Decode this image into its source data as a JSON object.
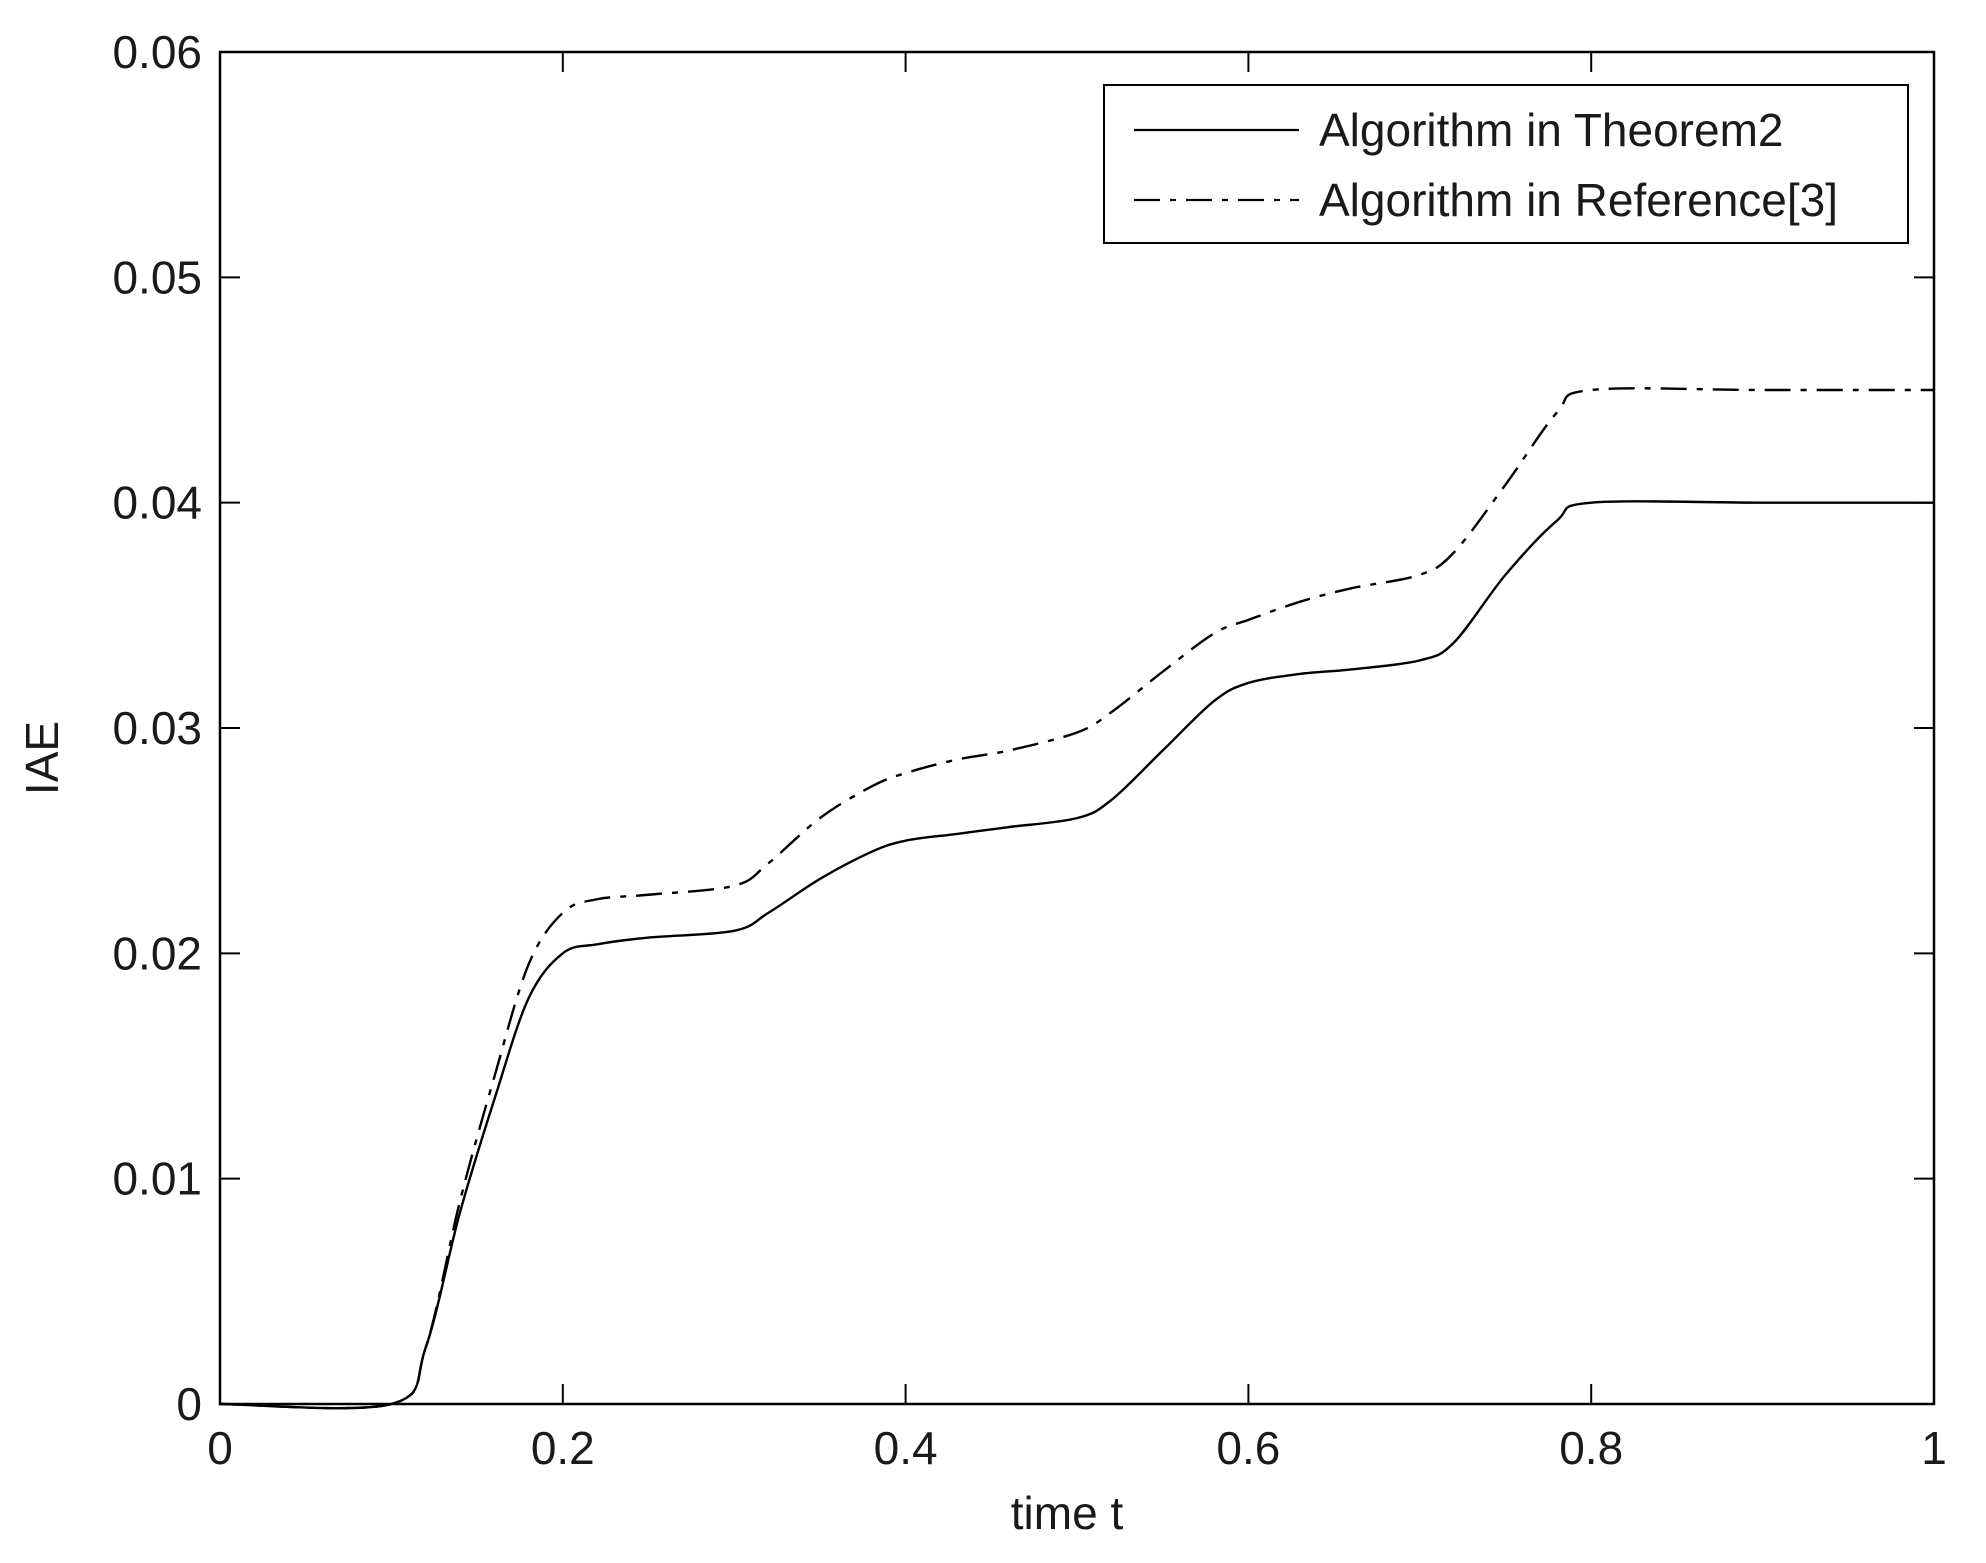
{
  "chart_data": {
    "type": "line",
    "title": "",
    "xlabel": "time t",
    "ylabel": "IAE",
    "xlim": [
      0,
      1
    ],
    "ylim": [
      0,
      0.06
    ],
    "x_ticks": [
      "0",
      "0.2",
      "0.4",
      "0.6",
      "0.8",
      "1"
    ],
    "x_tick_values": [
      0,
      0.2,
      0.4,
      0.6,
      0.8,
      1.0
    ],
    "y_ticks": [
      "0",
      "0.01",
      "0.02",
      "0.03",
      "0.04",
      "0.05",
      "0.06"
    ],
    "y_tick_values": [
      0,
      0.01,
      0.02,
      0.03,
      0.04,
      0.05,
      0.06
    ],
    "grid": false,
    "legend_position": "top-right",
    "series": [
      {
        "name": "Algorithm in Theorem2",
        "style": "solid",
        "color": "#000000",
        "x": [
          0,
          0.1,
          0.12,
          0.14,
          0.16,
          0.18,
          0.2,
          0.22,
          0.25,
          0.3,
          0.32,
          0.35,
          0.38,
          0.4,
          0.43,
          0.46,
          0.5,
          0.52,
          0.55,
          0.58,
          0.6,
          0.63,
          0.66,
          0.7,
          0.72,
          0.75,
          0.78,
          0.8,
          0.9,
          1.0
        ],
        "y": [
          0,
          0,
          0.0025,
          0.0085,
          0.0135,
          0.018,
          0.02,
          0.0204,
          0.0207,
          0.021,
          0.0218,
          0.0233,
          0.0245,
          0.025,
          0.0253,
          0.0256,
          0.026,
          0.0268,
          0.029,
          0.0312,
          0.032,
          0.0324,
          0.0326,
          0.033,
          0.0338,
          0.0368,
          0.0392,
          0.04,
          0.04,
          0.04
        ]
      },
      {
        "name": "Algorithm in Reference[3]",
        "style": "dashdot",
        "color": "#000000",
        "x": [
          0,
          0.1,
          0.12,
          0.14,
          0.16,
          0.18,
          0.2,
          0.22,
          0.25,
          0.3,
          0.32,
          0.35,
          0.38,
          0.4,
          0.43,
          0.46,
          0.5,
          0.52,
          0.55,
          0.58,
          0.6,
          0.63,
          0.66,
          0.7,
          0.72,
          0.75,
          0.78,
          0.8,
          0.9,
          1.0
        ],
        "y": [
          0,
          0,
          0.0025,
          0.009,
          0.0145,
          0.0195,
          0.0218,
          0.0224,
          0.0226,
          0.023,
          0.024,
          0.026,
          0.0274,
          0.028,
          0.0286,
          0.029,
          0.0298,
          0.0307,
          0.0325,
          0.0342,
          0.0348,
          0.0356,
          0.0362,
          0.0368,
          0.0378,
          0.0408,
          0.044,
          0.045,
          0.045,
          0.045
        ]
      }
    ]
  }
}
